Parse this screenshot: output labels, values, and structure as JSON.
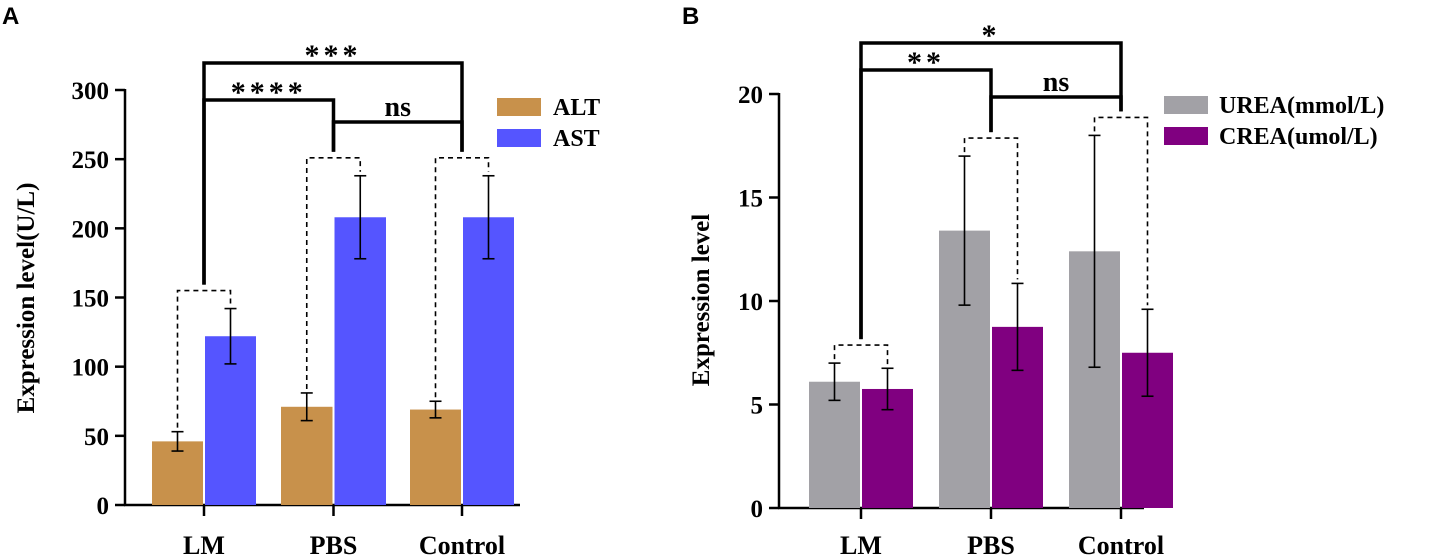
{
  "chart_data": [
    {
      "panel": "A",
      "type": "bar",
      "ylabel": "Expression level(U/L)",
      "ylim": [
        0,
        300
      ],
      "yticks": [
        0,
        50,
        100,
        150,
        200,
        250,
        300
      ],
      "categories": [
        "LM",
        "PBS",
        "Control"
      ],
      "series": [
        {
          "name": "ALT",
          "color": "#c8914b",
          "values": [
            46,
            71,
            69
          ],
          "errors": [
            7,
            10,
            6
          ]
        },
        {
          "name": "AST",
          "color": "#5555ff",
          "values": [
            122,
            208,
            208
          ],
          "errors": [
            20,
            30,
            30
          ]
        }
      ],
      "significance": [
        {
          "from": 0,
          "to": 2,
          "label": "***"
        },
        {
          "from": 0,
          "to": 1,
          "label": "****"
        },
        {
          "from": 1,
          "to": 2,
          "label": "ns"
        }
      ]
    },
    {
      "panel": "B",
      "type": "bar",
      "ylabel": "Expression level",
      "ylim": [
        0,
        20
      ],
      "yticks": [
        0,
        5,
        10,
        15,
        20
      ],
      "categories": [
        "LM",
        "PBS",
        "Control"
      ],
      "series": [
        {
          "name": "UREA(mmol/L)",
          "color": "#a2a1a6",
          "values": [
            6.1,
            13.4,
            12.4
          ],
          "errors": [
            0.9,
            3.6,
            5.6
          ]
        },
        {
          "name": "CREA(umol/L)",
          "color": "#800080",
          "values": [
            5.75,
            8.75,
            7.5
          ],
          "errors": [
            1.0,
            2.1,
            2.1
          ]
        }
      ],
      "significance": [
        {
          "from": 0,
          "to": 2,
          "label": "*"
        },
        {
          "from": 0,
          "to": 1,
          "label": "**"
        },
        {
          "from": 1,
          "to": 2,
          "label": "ns"
        }
      ]
    }
  ]
}
